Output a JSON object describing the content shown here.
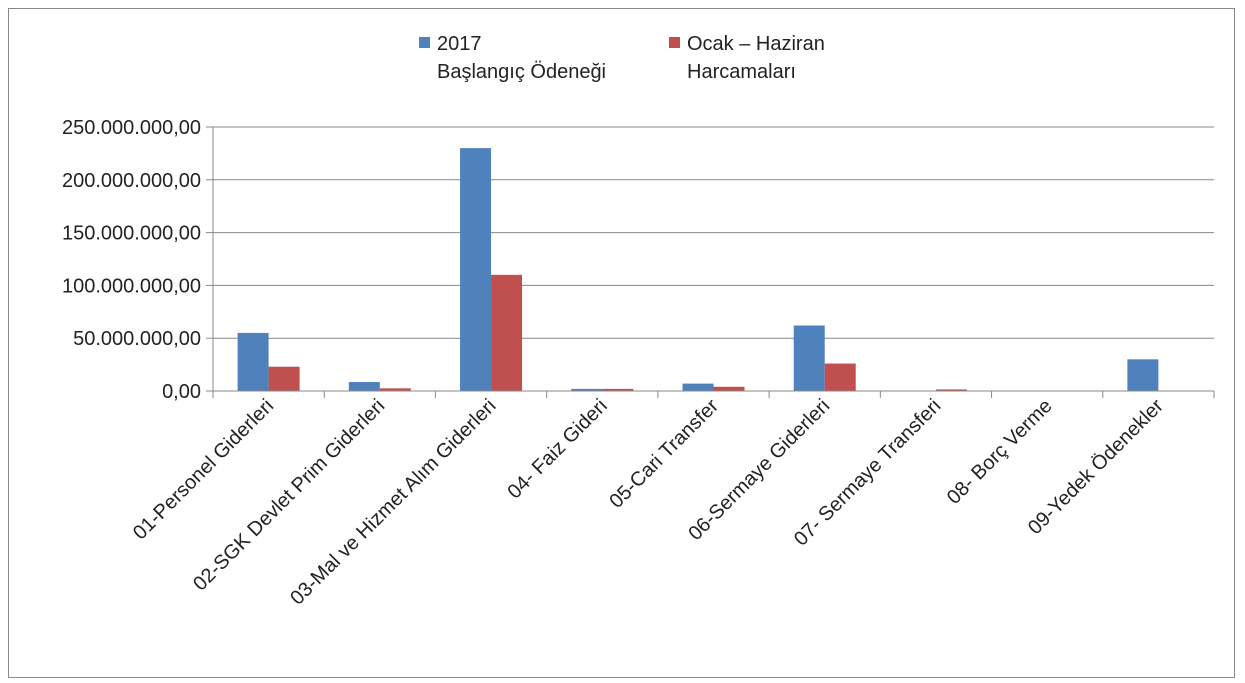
{
  "chart_data": {
    "type": "bar",
    "categories": [
      "01-Personel Giderleri",
      "02-SGK Devlet Prim Giderleri",
      "03-Mal ve Hizmet Alım Giderleri",
      "04- Faiz Gideri",
      "05-Cari Transfer",
      "06-Sermaye Giderleri",
      "07- Sermaye Transferi",
      "08- Borç Verme",
      "09-Yedek Ödenekler"
    ],
    "series": [
      {
        "name_lines": [
          "2017",
          "Başlangıç Ödeneği"
        ],
        "color": "#4f81bd",
        "values": [
          55000000,
          8500000,
          230000000,
          2000000,
          7000000,
          62000000,
          0,
          0,
          30000000
        ]
      },
      {
        "name_lines": [
          "Ocak – Haziran",
          "Harcamaları"
        ],
        "color": "#c0504d",
        "values": [
          23000000,
          2500000,
          110000000,
          2000000,
          4000000,
          26000000,
          1500000,
          0,
          0
        ]
      }
    ],
    "y_ticks": [
      "0,00",
      "50.000.000,00",
      "100.000.000,00",
      "150.000.000,00",
      "200.000.000,00",
      "250.000.000,00"
    ],
    "ylim": [
      0,
      250000000
    ],
    "grid": true,
    "legend_position": "top"
  }
}
